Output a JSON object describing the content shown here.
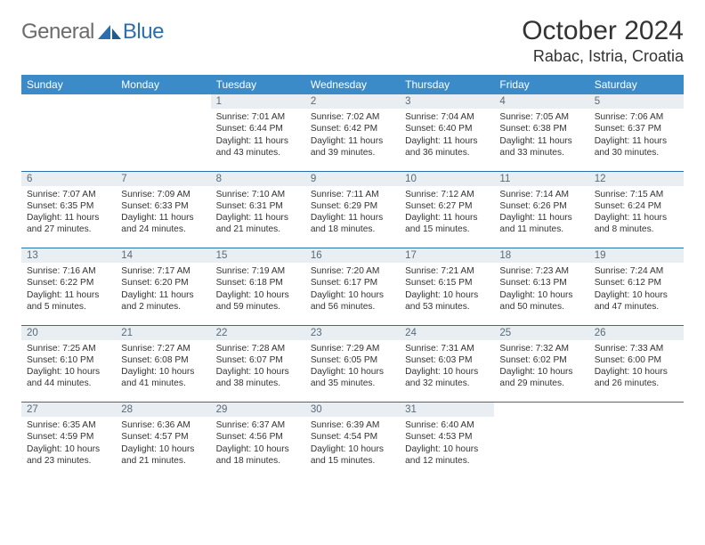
{
  "logo": {
    "general": "General",
    "blue": "Blue"
  },
  "title": "October 2024",
  "location": "Rabac, Istria, Croatia",
  "colors": {
    "header_bg": "#3b8bc8",
    "daynum_bg": "#e9eef2",
    "rule": "#2b6fb0",
    "logo_gray": "#6b6b6b",
    "logo_blue": "#2b6fb0"
  },
  "weekdays": [
    "Sunday",
    "Monday",
    "Tuesday",
    "Wednesday",
    "Thursday",
    "Friday",
    "Saturday"
  ],
  "weeks": [
    [
      null,
      null,
      {
        "n": "1",
        "sr": "Sunrise: 7:01 AM",
        "ss": "Sunset: 6:44 PM",
        "dl": "Daylight: 11 hours and 43 minutes."
      },
      {
        "n": "2",
        "sr": "Sunrise: 7:02 AM",
        "ss": "Sunset: 6:42 PM",
        "dl": "Daylight: 11 hours and 39 minutes."
      },
      {
        "n": "3",
        "sr": "Sunrise: 7:04 AM",
        "ss": "Sunset: 6:40 PM",
        "dl": "Daylight: 11 hours and 36 minutes."
      },
      {
        "n": "4",
        "sr": "Sunrise: 7:05 AM",
        "ss": "Sunset: 6:38 PM",
        "dl": "Daylight: 11 hours and 33 minutes."
      },
      {
        "n": "5",
        "sr": "Sunrise: 7:06 AM",
        "ss": "Sunset: 6:37 PM",
        "dl": "Daylight: 11 hours and 30 minutes."
      }
    ],
    [
      {
        "n": "6",
        "sr": "Sunrise: 7:07 AM",
        "ss": "Sunset: 6:35 PM",
        "dl": "Daylight: 11 hours and 27 minutes."
      },
      {
        "n": "7",
        "sr": "Sunrise: 7:09 AM",
        "ss": "Sunset: 6:33 PM",
        "dl": "Daylight: 11 hours and 24 minutes."
      },
      {
        "n": "8",
        "sr": "Sunrise: 7:10 AM",
        "ss": "Sunset: 6:31 PM",
        "dl": "Daylight: 11 hours and 21 minutes."
      },
      {
        "n": "9",
        "sr": "Sunrise: 7:11 AM",
        "ss": "Sunset: 6:29 PM",
        "dl": "Daylight: 11 hours and 18 minutes."
      },
      {
        "n": "10",
        "sr": "Sunrise: 7:12 AM",
        "ss": "Sunset: 6:27 PM",
        "dl": "Daylight: 11 hours and 15 minutes."
      },
      {
        "n": "11",
        "sr": "Sunrise: 7:14 AM",
        "ss": "Sunset: 6:26 PM",
        "dl": "Daylight: 11 hours and 11 minutes."
      },
      {
        "n": "12",
        "sr": "Sunrise: 7:15 AM",
        "ss": "Sunset: 6:24 PM",
        "dl": "Daylight: 11 hours and 8 minutes."
      }
    ],
    [
      {
        "n": "13",
        "sr": "Sunrise: 7:16 AM",
        "ss": "Sunset: 6:22 PM",
        "dl": "Daylight: 11 hours and 5 minutes."
      },
      {
        "n": "14",
        "sr": "Sunrise: 7:17 AM",
        "ss": "Sunset: 6:20 PM",
        "dl": "Daylight: 11 hours and 2 minutes."
      },
      {
        "n": "15",
        "sr": "Sunrise: 7:19 AM",
        "ss": "Sunset: 6:18 PM",
        "dl": "Daylight: 10 hours and 59 minutes."
      },
      {
        "n": "16",
        "sr": "Sunrise: 7:20 AM",
        "ss": "Sunset: 6:17 PM",
        "dl": "Daylight: 10 hours and 56 minutes."
      },
      {
        "n": "17",
        "sr": "Sunrise: 7:21 AM",
        "ss": "Sunset: 6:15 PM",
        "dl": "Daylight: 10 hours and 53 minutes."
      },
      {
        "n": "18",
        "sr": "Sunrise: 7:23 AM",
        "ss": "Sunset: 6:13 PM",
        "dl": "Daylight: 10 hours and 50 minutes."
      },
      {
        "n": "19",
        "sr": "Sunrise: 7:24 AM",
        "ss": "Sunset: 6:12 PM",
        "dl": "Daylight: 10 hours and 47 minutes."
      }
    ],
    [
      {
        "n": "20",
        "sr": "Sunrise: 7:25 AM",
        "ss": "Sunset: 6:10 PM",
        "dl": "Daylight: 10 hours and 44 minutes."
      },
      {
        "n": "21",
        "sr": "Sunrise: 7:27 AM",
        "ss": "Sunset: 6:08 PM",
        "dl": "Daylight: 10 hours and 41 minutes."
      },
      {
        "n": "22",
        "sr": "Sunrise: 7:28 AM",
        "ss": "Sunset: 6:07 PM",
        "dl": "Daylight: 10 hours and 38 minutes."
      },
      {
        "n": "23",
        "sr": "Sunrise: 7:29 AM",
        "ss": "Sunset: 6:05 PM",
        "dl": "Daylight: 10 hours and 35 minutes."
      },
      {
        "n": "24",
        "sr": "Sunrise: 7:31 AM",
        "ss": "Sunset: 6:03 PM",
        "dl": "Daylight: 10 hours and 32 minutes."
      },
      {
        "n": "25",
        "sr": "Sunrise: 7:32 AM",
        "ss": "Sunset: 6:02 PM",
        "dl": "Daylight: 10 hours and 29 minutes."
      },
      {
        "n": "26",
        "sr": "Sunrise: 7:33 AM",
        "ss": "Sunset: 6:00 PM",
        "dl": "Daylight: 10 hours and 26 minutes."
      }
    ],
    [
      {
        "n": "27",
        "sr": "Sunrise: 6:35 AM",
        "ss": "Sunset: 4:59 PM",
        "dl": "Daylight: 10 hours and 23 minutes."
      },
      {
        "n": "28",
        "sr": "Sunrise: 6:36 AM",
        "ss": "Sunset: 4:57 PM",
        "dl": "Daylight: 10 hours and 21 minutes."
      },
      {
        "n": "29",
        "sr": "Sunrise: 6:37 AM",
        "ss": "Sunset: 4:56 PM",
        "dl": "Daylight: 10 hours and 18 minutes."
      },
      {
        "n": "30",
        "sr": "Sunrise: 6:39 AM",
        "ss": "Sunset: 4:54 PM",
        "dl": "Daylight: 10 hours and 15 minutes."
      },
      {
        "n": "31",
        "sr": "Sunrise: 6:40 AM",
        "ss": "Sunset: 4:53 PM",
        "dl": "Daylight: 10 hours and 12 minutes."
      },
      null,
      null
    ]
  ]
}
